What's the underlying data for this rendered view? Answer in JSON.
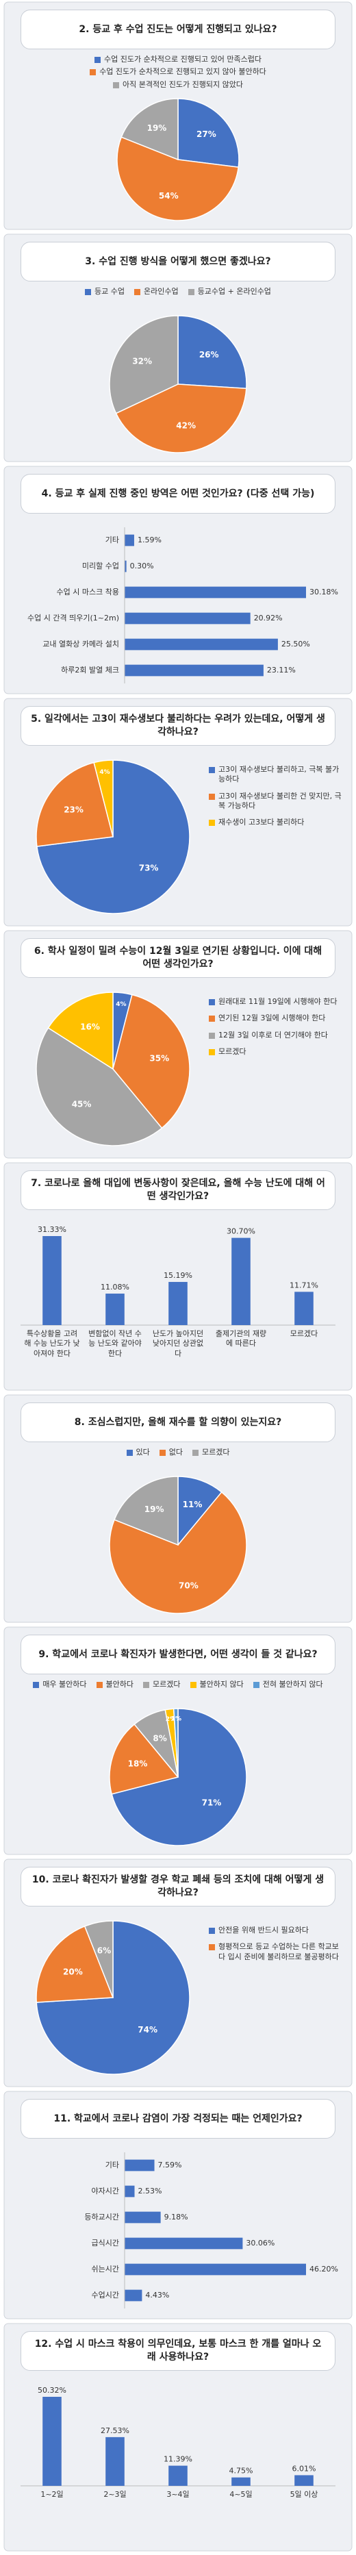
{
  "chart_data": [
    {
      "type": "pie",
      "title": "2. 등교 후 수업 진도는 어떻게 진행되고 있나요?",
      "legend": "top",
      "categories": [
        "수업 진도가 순차적으로 진행되고 있어 만족스럽다",
        "수업 진도가 순차적으로 진행되고 있지 않아 불안하다",
        "아직 본격적인 진도가 진행되지 않았다"
      ],
      "values": [
        27,
        54,
        19
      ],
      "value_labels": [
        "27%",
        "54%",
        "19%"
      ],
      "colors": [
        "#4472c4",
        "#ed7d31",
        "#a5a5a5"
      ]
    },
    {
      "type": "pie",
      "title": "3. 수업 진행 방식을 어떻게 했으면 좋겠나요?",
      "legend": "top",
      "categories": [
        "등교 수업",
        "온라인수업",
        "등교수업 + 온라인수업"
      ],
      "values": [
        26,
        42,
        32
      ],
      "value_labels": [
        "26%",
        "42%",
        "32%"
      ],
      "colors": [
        "#4472c4",
        "#ed7d31",
        "#a5a5a5"
      ]
    },
    {
      "type": "hbar",
      "title": "4. 등교 후 실제 진행 중인 방역은 어떤 것인가요? (다중 선택 가능)",
      "color": "#4472c4",
      "categories": [
        "기타",
        "미리할 수업",
        "수업 시 마스크 착용",
        "수업 시 간격 띄우기(1~2m)",
        "교내 열화상 카메라 설치",
        "하루2회 발열 체크"
      ],
      "values": [
        1.59,
        0.3,
        30.18,
        20.92,
        25.5,
        23.11
      ],
      "value_labels": [
        "1.59%",
        "0.30%",
        "30.18%",
        "20.92%",
        "25.50%",
        "23.11%"
      ]
    },
    {
      "type": "pie",
      "title": "5. 일각에서는 고3이 재수생보다 불리하다는 우려가 있는데요, 어떻게 생각하나요?",
      "legend": "right",
      "categories": [
        "고3이 재수생보다 불리하고, 극복 불가능하다",
        "고3이 재수생보다 불리한 건 맞지만, 극복 가능하다",
        "재수생이 고3보다 불리하다"
      ],
      "values": [
        73,
        23,
        4
      ],
      "value_labels": [
        "73%",
        "23%",
        "4%"
      ],
      "colors": [
        "#4472c4",
        "#ed7d31",
        "#ffc000"
      ]
    },
    {
      "type": "pie",
      "title": "6. 학사 일정이 밀려 수능이 12월 3일로 연기된 상황입니다. 이에 대해 어떤 생각인가요?",
      "legend": "right",
      "categories": [
        "원래대로 11월 19일에 시행해야 한다",
        "연기된 12월 3일에 시행해야 한다",
        "12월 3일 이후로 더 연기해야 한다",
        "모르겠다"
      ],
      "values": [
        4,
        35,
        45,
        16
      ],
      "value_labels": [
        "4%",
        "35%",
        "45%",
        "16%"
      ],
      "colors": [
        "#4472c4",
        "#ed7d31",
        "#a5a5a5",
        "#ffc000"
      ]
    },
    {
      "type": "vbar",
      "title": "7. 코로나로 올해 대입에 변동사항이 잦은데요, 올해 수능 난도에 대해 어떤 생각인가요?",
      "color": "#4472c4",
      "categories": [
        "특수상황을 고려해 수능 난도가 낮아져야 한다",
        "변함없이 작년 수능 난도와 같아야 한다",
        "난도가 높아지던 낮아지던 상관없다",
        "출제기관의 재량에 따른다",
        "모르겠다"
      ],
      "values": [
        31.33,
        11.08,
        15.19,
        30.7,
        11.71
      ],
      "value_labels": [
        "31.33%",
        "11.08%",
        "15.19%",
        "30.70%",
        "11.71%"
      ]
    },
    {
      "type": "pie",
      "title": "8. 조심스럽지만, 올해 재수를 할 의향이 있는지요?",
      "legend": "top",
      "categories": [
        "있다",
        "없다",
        "모르겠다"
      ],
      "values": [
        11,
        70,
        19
      ],
      "value_labels": [
        "11%",
        "70%",
        "19%"
      ],
      "colors": [
        "#4472c4",
        "#ed7d31",
        "#a5a5a5"
      ]
    },
    {
      "type": "pie",
      "title": "9. 학교에서 코로나 확진자가 발생한다면, 어떤 생각이 들 것 같나요?",
      "legend": "top",
      "categories": [
        "매우 불안하다",
        "불안하다",
        "모르겠다",
        "불안하지 않다",
        "전혀 불안하지 않다"
      ],
      "values": [
        71,
        18,
        8,
        2,
        1
      ],
      "value_labels": [
        "71%",
        "18%",
        "8%",
        "2%",
        "1%"
      ],
      "colors": [
        "#4472c4",
        "#ed7d31",
        "#a5a5a5",
        "#ffc000",
        "#5b9bd5"
      ]
    },
    {
      "type": "pie",
      "title": "10. 코로나 확진자가 발생할 경우 학교 폐쇄 등의 조치에 대해 어떻게 생각하나요?",
      "legend": "right",
      "categories": [
        "안전을 위해 반드시 필요하다",
        "형평적으로 등교 수업하는 다른 학교보다 입시 준비에 불리하므로 불공평하다",
        null
      ],
      "values": [
        74,
        20,
        6
      ],
      "value_labels": [
        "74%",
        "20%",
        "6%"
      ],
      "colors": [
        "#4472c4",
        "#ed7d31",
        "#a5a5a5"
      ]
    },
    {
      "type": "hbar",
      "title": "11. 학교에서 코로나 감염이 가장 걱정되는 때는 언제인가요?",
      "color": "#4472c4",
      "categories": [
        "기타",
        "야자시간",
        "등하교시간",
        "급식시간",
        "쉬는시간",
        "수업시간"
      ],
      "values": [
        7.59,
        2.53,
        9.18,
        30.06,
        46.2,
        4.43
      ],
      "value_labels": [
        "7.59%",
        "2.53%",
        "9.18%",
        "30.06%",
        "46.20%",
        "4.43%"
      ]
    },
    {
      "type": "vbar",
      "title": "12. 수업 시 마스크 착용이 의무인데요, 보통 마스크 한 개를 얼마나 오래 사용하나요?",
      "color": "#4472c4",
      "categories": [
        "1~2일",
        "2~3일",
        "3~4일",
        "4~5일",
        "5일 이상"
      ],
      "values": [
        50.32,
        27.53,
        11.39,
        4.75,
        6.01
      ],
      "value_labels": [
        "50.32%",
        "27.53%",
        "11.39%",
        "4.75%",
        "6.01%"
      ]
    }
  ]
}
